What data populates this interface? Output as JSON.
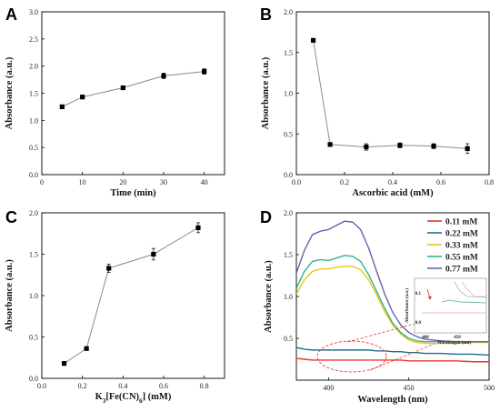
{
  "chart_data": [
    {
      "type": "line",
      "panel": "A",
      "xlabel": "Time (min)",
      "ylabel": "Absorbance (a.u.)",
      "xlim": [
        0,
        45
      ],
      "ylim": [
        0.0,
        3.0
      ],
      "xticks": [
        "0",
        "10",
        "20",
        "30",
        "40"
      ],
      "yticks": [
        "0.0",
        "0.5",
        "1.0",
        "1.5",
        "2.0",
        "2.5",
        "3.0"
      ],
      "x": [
        5,
        10,
        20,
        30,
        40
      ],
      "series": [
        {
          "values": [
            1.25,
            1.43,
            1.6,
            1.82,
            1.9
          ],
          "errors": [
            0.03,
            0.03,
            0.03,
            0.05,
            0.05
          ]
        }
      ],
      "marker": "square",
      "grid": false
    },
    {
      "type": "line",
      "panel": "B",
      "xlabel": "Ascorbic acid (mM)",
      "ylabel": "Absorbance (a.u.)",
      "xlim": [
        0.0,
        0.8
      ],
      "ylim": [
        0.0,
        2.0
      ],
      "xticks": [
        "0.0",
        "0.2",
        "0.4",
        "0.6",
        "0.8"
      ],
      "yticks": [
        "0.0",
        "0.5",
        "1.0",
        "1.5",
        "2.0"
      ],
      "x": [
        0.07,
        0.14,
        0.29,
        0.43,
        0.57,
        0.71
      ],
      "series": [
        {
          "values": [
            1.65,
            0.37,
            0.34,
            0.36,
            0.35,
            0.32
          ],
          "errors": [
            0.02,
            0.01,
            0.04,
            0.03,
            0.03,
            0.06
          ]
        }
      ],
      "marker": "square",
      "grid": false
    },
    {
      "type": "line",
      "panel": "C",
      "xlabel": "K3[Fe(CN)6] (mM)",
      "ylabel": "Absorbance (a.u.)",
      "xlim": [
        0.0,
        0.9
      ],
      "ylim": [
        0.0,
        2.0
      ],
      "xticks": [
        "0.0",
        "0.2",
        "0.4",
        "0.6",
        "0.8"
      ],
      "yticks": [
        "0.0",
        "0.5",
        "1.0",
        "1.5",
        "2.0"
      ],
      "x": [
        0.11,
        0.22,
        0.33,
        0.55,
        0.77
      ],
      "series": [
        {
          "values": [
            0.18,
            0.36,
            1.33,
            1.5,
            1.82
          ],
          "errors": [
            0.02,
            0.01,
            0.05,
            0.07,
            0.06
          ]
        }
      ],
      "marker": "square",
      "grid": false
    },
    {
      "type": "line",
      "panel": "D",
      "xlabel": "Wavelength (nm)",
      "ylabel": "Absorbance (a.u.)",
      "xlim": [
        380,
        500
      ],
      "ylim": [
        0.0,
        2.0
      ],
      "xticks": [
        "400",
        "450",
        "500"
      ],
      "yticks": [
        "0.5",
        "1.0",
        "1.5",
        "2.0"
      ],
      "legend": "top-right",
      "x": [
        380,
        385,
        390,
        395,
        400,
        405,
        410,
        415,
        420,
        425,
        430,
        435,
        440,
        445,
        450,
        455,
        460,
        470,
        480,
        490,
        500
      ],
      "series": [
        {
          "name": "0.11 mM",
          "color": "#e8352d",
          "values": [
            0.26,
            0.25,
            0.24,
            0.24,
            0.24,
            0.24,
            0.24,
            0.24,
            0.24,
            0.24,
            0.24,
            0.24,
            0.24,
            0.24,
            0.23,
            0.23,
            0.23,
            0.23,
            0.23,
            0.22,
            0.22
          ]
        },
        {
          "name": "0.22 mM",
          "color": "#1f6e8c",
          "values": [
            0.39,
            0.37,
            0.36,
            0.36,
            0.36,
            0.36,
            0.36,
            0.36,
            0.36,
            0.36,
            0.35,
            0.35,
            0.34,
            0.34,
            0.33,
            0.33,
            0.32,
            0.32,
            0.31,
            0.31,
            0.3
          ]
        },
        {
          "name": "0.33 mM",
          "color": "#f0c419",
          "values": [
            1.03,
            1.2,
            1.3,
            1.33,
            1.33,
            1.35,
            1.36,
            1.36,
            1.32,
            1.2,
            1.02,
            0.82,
            0.66,
            0.55,
            0.48,
            0.45,
            0.44,
            0.44,
            0.44,
            0.45,
            0.45
          ]
        },
        {
          "name": "0.55 mM",
          "color": "#2fb58a",
          "values": [
            1.1,
            1.3,
            1.42,
            1.44,
            1.43,
            1.46,
            1.49,
            1.48,
            1.42,
            1.26,
            1.06,
            0.86,
            0.68,
            0.57,
            0.5,
            0.47,
            0.46,
            0.46,
            0.46,
            0.46,
            0.46
          ]
        },
        {
          "name": "0.77 mM",
          "color": "#6d5fb0",
          "values": [
            1.28,
            1.55,
            1.74,
            1.78,
            1.8,
            1.85,
            1.9,
            1.89,
            1.8,
            1.58,
            1.3,
            1.03,
            0.81,
            0.66,
            0.57,
            0.52,
            0.49,
            0.47,
            0.46,
            0.46,
            0.46
          ]
        }
      ],
      "inset": {
        "xlabel": "Wavelength (nm)",
        "ylabel": "Absorbance (a.u.)",
        "xticks": [
          "400",
          "450"
        ],
        "yticks": [
          "0.0",
          "0.1"
        ]
      },
      "grid": false
    }
  ]
}
